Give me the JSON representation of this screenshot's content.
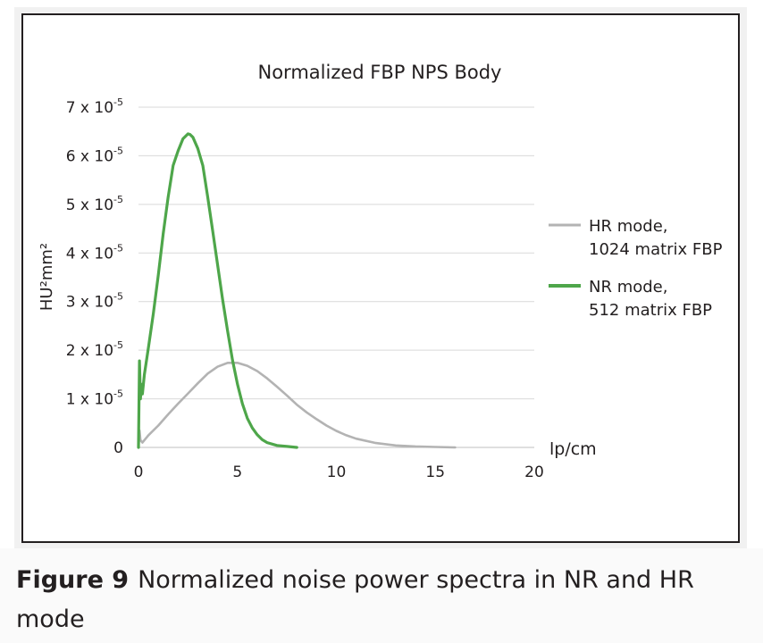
{
  "chart_data": {
    "type": "line",
    "title": "Normalized FBP NPS Body",
    "xlabel": "lp/cm",
    "ylabel": "HU²mm²",
    "xlim": [
      0,
      20
    ],
    "ylim": [
      0,
      7e-05
    ],
    "x_ticks": [
      0,
      5,
      10,
      15,
      20
    ],
    "y_ticks": [
      {
        "value": 0,
        "label": "0"
      },
      {
        "value": 1e-05,
        "mant": "1 x 10",
        "exp": "-5"
      },
      {
        "value": 2e-05,
        "mant": "2 x 10",
        "exp": "-5"
      },
      {
        "value": 3e-05,
        "mant": "3 x 10",
        "exp": "-5"
      },
      {
        "value": 4e-05,
        "mant": "4 x 10",
        "exp": "-5"
      },
      {
        "value": 5e-05,
        "mant": "5 x 10",
        "exp": "-5"
      },
      {
        "value": 6e-05,
        "mant": "6 x 10",
        "exp": "-5"
      },
      {
        "value": 7e-05,
        "mant": "7 x 10",
        "exp": "-5"
      }
    ],
    "grid": true,
    "legend_position": "right",
    "series": [
      {
        "name": "HR mode, 1024 matrix FBP",
        "legend_lines": [
          "HR mode,",
          "1024 matrix FBP"
        ],
        "color": "#b3b3b3",
        "x": [
          0,
          0.05,
          0.1,
          0.2,
          0.5,
          1.0,
          1.5,
          2.0,
          2.5,
          3.0,
          3.5,
          4.0,
          4.5,
          5.0,
          5.5,
          6.0,
          6.5,
          7.0,
          7.5,
          8.0,
          8.5,
          9.0,
          9.5,
          10.0,
          10.5,
          11.0,
          12.0,
          13.0,
          14.0,
          15.0,
          16.0
        ],
        "y": [
          0,
          3.5e-06,
          1.5e-06,
          1e-06,
          2.5e-06,
          4.5e-06,
          6.8e-06,
          9e-06,
          1.11e-05,
          1.32e-05,
          1.52e-05,
          1.66e-05,
          1.74e-05,
          1.74e-05,
          1.68e-05,
          1.57e-05,
          1.42e-05,
          1.25e-05,
          1.07e-05,
          8.8e-06,
          7.2e-06,
          5.8e-06,
          4.5e-06,
          3.4e-06,
          2.5e-06,
          1.8e-06,
          9e-07,
          4e-07,
          2e-07,
          1e-07,
          0
        ]
      },
      {
        "name": "NR mode, 512 matrix FBP",
        "legend_lines": [
          "NR mode,",
          "512 matrix FBP"
        ],
        "color": "#4ea64a",
        "x": [
          0,
          0.05,
          0.1,
          0.15,
          0.2,
          0.3,
          0.5,
          0.75,
          1.0,
          1.25,
          1.5,
          1.75,
          2.0,
          2.25,
          2.5,
          2.6,
          2.75,
          3.0,
          3.25,
          3.5,
          3.75,
          4.0,
          4.25,
          4.5,
          4.75,
          5.0,
          5.25,
          5.5,
          5.75,
          6.0,
          6.25,
          6.5,
          7.0,
          7.5,
          8.0
        ],
        "y": [
          0,
          1.78e-05,
          1e-05,
          1.3e-05,
          1.1e-05,
          1.5e-05,
          2.05e-05,
          2.75e-05,
          3.55e-05,
          4.4e-05,
          5.15e-05,
          5.8e-05,
          6.1e-05,
          6.35e-05,
          6.45e-05,
          6.44e-05,
          6.38e-05,
          6.15e-05,
          5.8e-05,
          5.15e-05,
          4.45e-05,
          3.75e-05,
          3.05e-05,
          2.4e-05,
          1.8e-05,
          1.3e-05,
          9e-06,
          6e-06,
          4e-06,
          2.6e-06,
          1.6e-06,
          1e-06,
          4e-07,
          2e-07,
          0
        ]
      }
    ]
  },
  "caption": {
    "label": "Figure 9",
    "text": "Normalized noise power spectra in NR and HR mode"
  }
}
